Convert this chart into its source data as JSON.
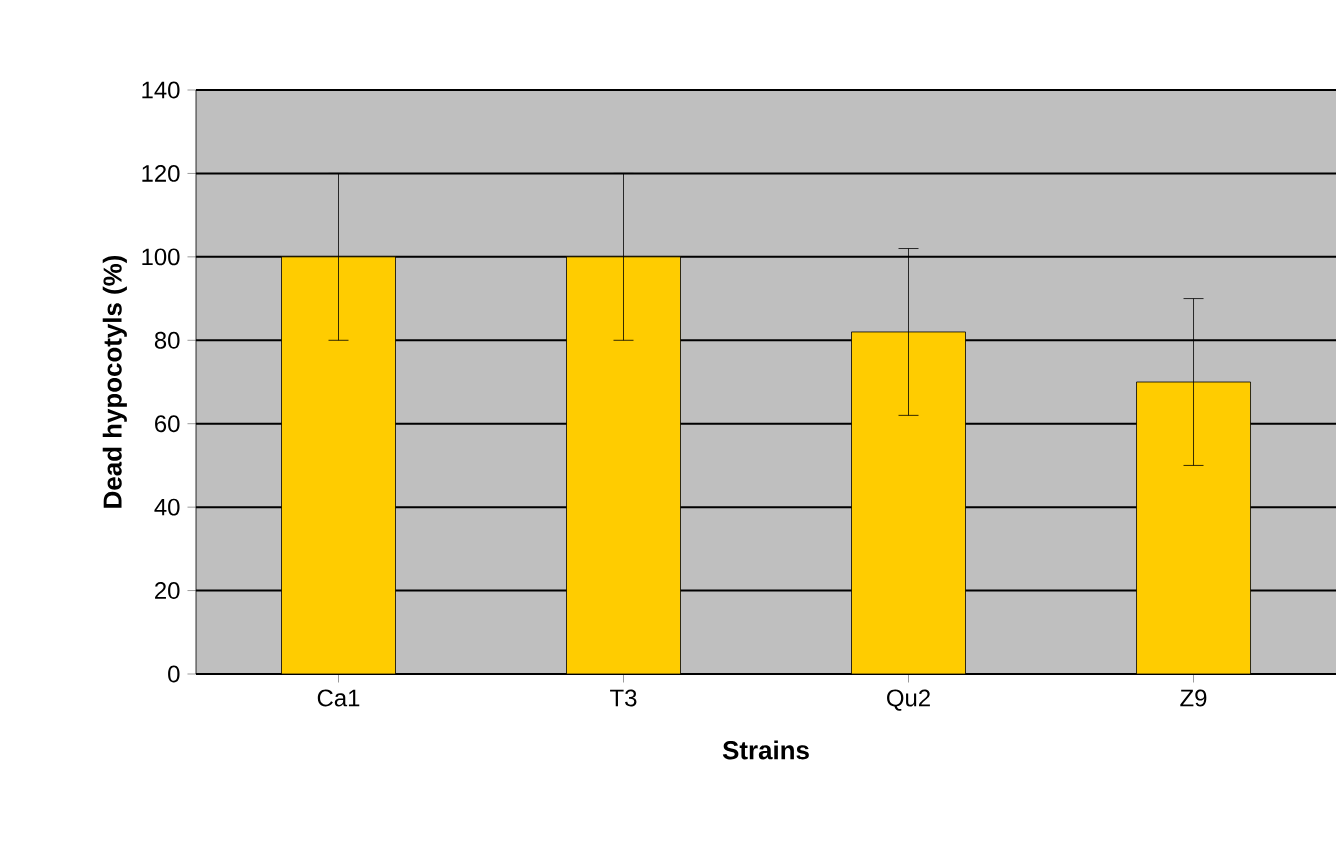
{
  "chart_data": {
    "type": "bar",
    "xlabel": "Strains",
    "ylabel": "Dead hypocotyls (%)",
    "categories": [
      "Ca1",
      "T3",
      "Qu2",
      "Z9"
    ],
    "values": [
      100,
      100,
      82,
      70
    ],
    "errors": [
      20,
      20,
      20,
      20
    ],
    "color": "#ffcc00",
    "ylim": [
      0,
      140
    ],
    "yticks": [
      0,
      20,
      40,
      60,
      80,
      100,
      120,
      140
    ],
    "grid": "y"
  }
}
